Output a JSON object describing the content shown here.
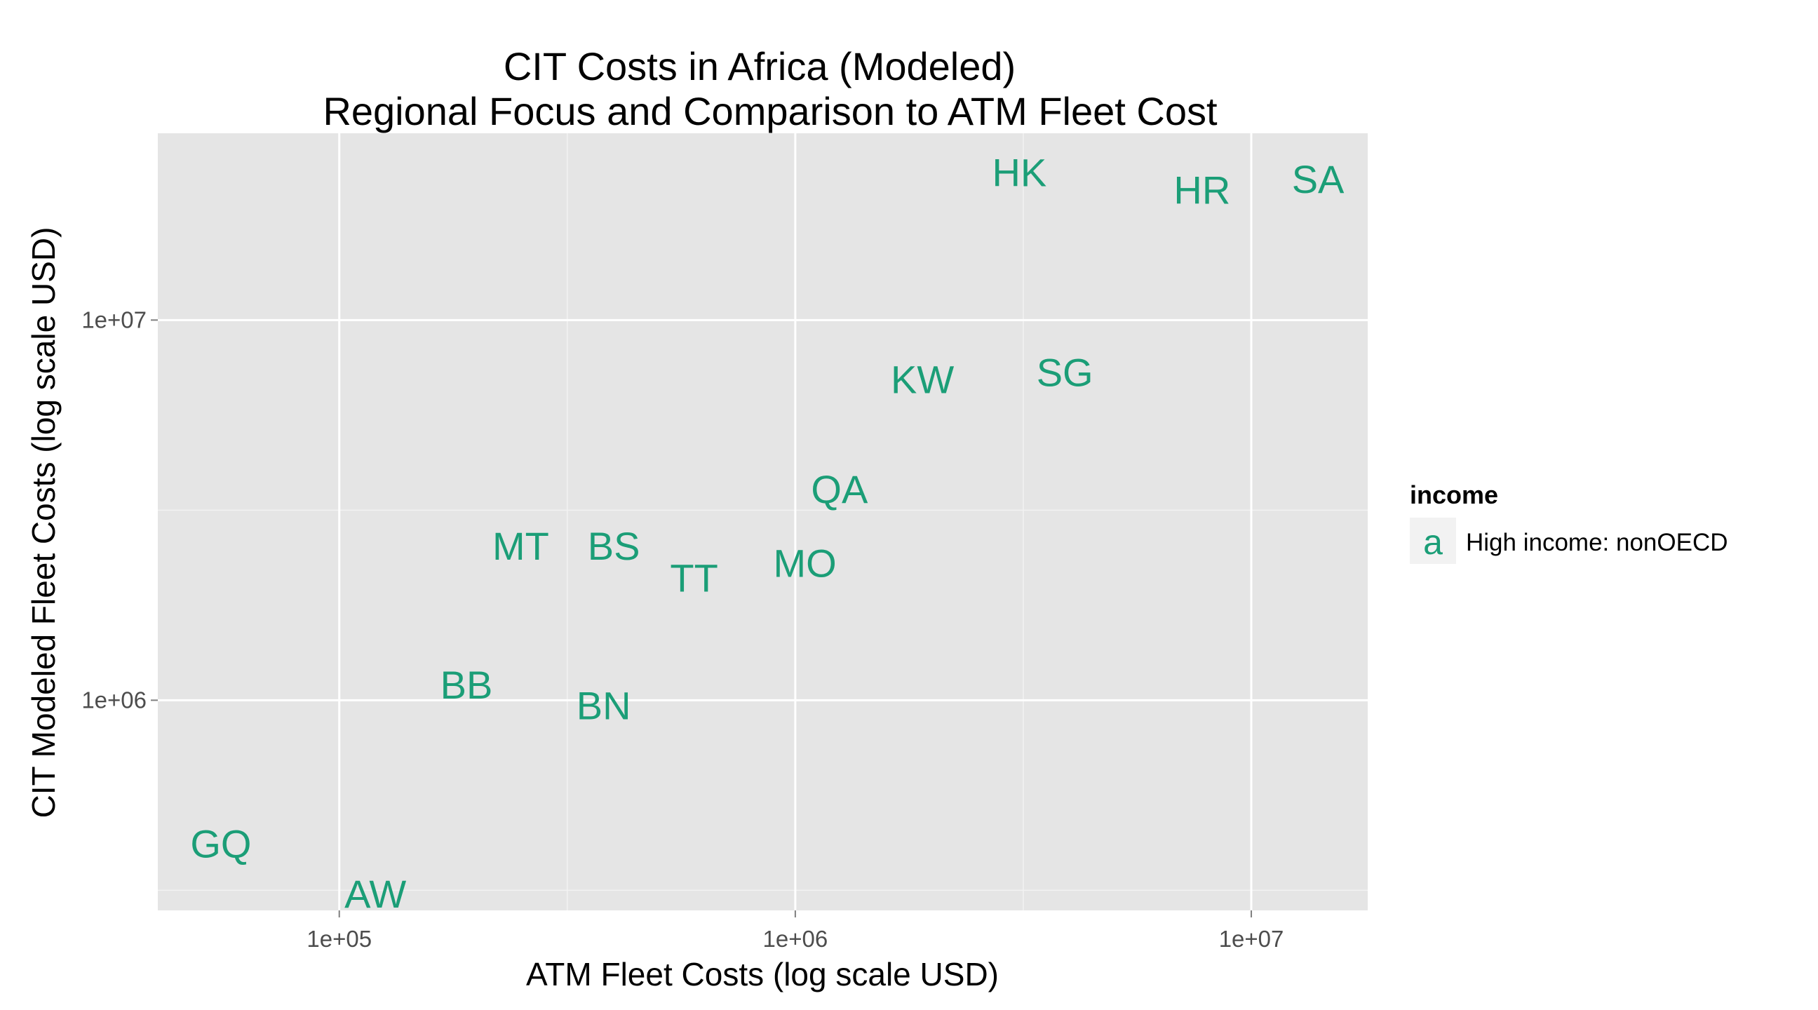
{
  "chart_data": {
    "type": "scatter",
    "title": "CIT Costs in Africa (Modeled)",
    "subtitle": "Regional Focus and Comparison to ATM Fleet Cost",
    "xlabel": "ATM Fleet Costs (log scale USD)",
    "ylabel": "CIT Modeled Fleet Costs (log scale USD)",
    "x_scale": "log10",
    "y_scale": "log10",
    "xlim": [
      40000,
      18000000
    ],
    "ylim": [
      280000,
      31000000
    ],
    "x_ticks": [
      100000,
      1000000,
      10000000
    ],
    "x_tick_labels": [
      "1e+05",
      "1e+06",
      "1e+07"
    ],
    "y_ticks": [
      1000000,
      10000000
    ],
    "y_tick_labels": [
      "1e+06",
      "1e+07"
    ],
    "x_minor_gridlines": [
      316228,
      3162278
    ],
    "y_minor_gridlines": [
      316228,
      3162278
    ],
    "grid": true,
    "legend_position": "right",
    "legend": {
      "title": "income",
      "key_glyph": "a",
      "entries": [
        {
          "name": "High income: nonOECD",
          "color": "#1b9e77"
        }
      ]
    },
    "series": [
      {
        "name": "High income: nonOECD",
        "color": "#1b9e77",
        "points": [
          {
            "label": "HK",
            "x": 3100000,
            "y": 24500000
          },
          {
            "label": "HR",
            "x": 7800000,
            "y": 22000000
          },
          {
            "label": "SA",
            "x": 14000000,
            "y": 23500000
          },
          {
            "label": "KW",
            "x": 1900000,
            "y": 7000000
          },
          {
            "label": "SG",
            "x": 3900000,
            "y": 7300000
          },
          {
            "label": "QA",
            "x": 1250000,
            "y": 3600000
          },
          {
            "label": "MT",
            "x": 250000,
            "y": 2550000
          },
          {
            "label": "BS",
            "x": 400000,
            "y": 2550000
          },
          {
            "label": "TT",
            "x": 600000,
            "y": 2100000
          },
          {
            "label": "MO",
            "x": 1050000,
            "y": 2300000
          },
          {
            "label": "BB",
            "x": 190000,
            "y": 1100000
          },
          {
            "label": "BN",
            "x": 380000,
            "y": 970000
          },
          {
            "label": "GQ",
            "x": 55000,
            "y": 420000
          },
          {
            "label": "AW",
            "x": 120000,
            "y": 310000
          }
        ]
      }
    ]
  }
}
